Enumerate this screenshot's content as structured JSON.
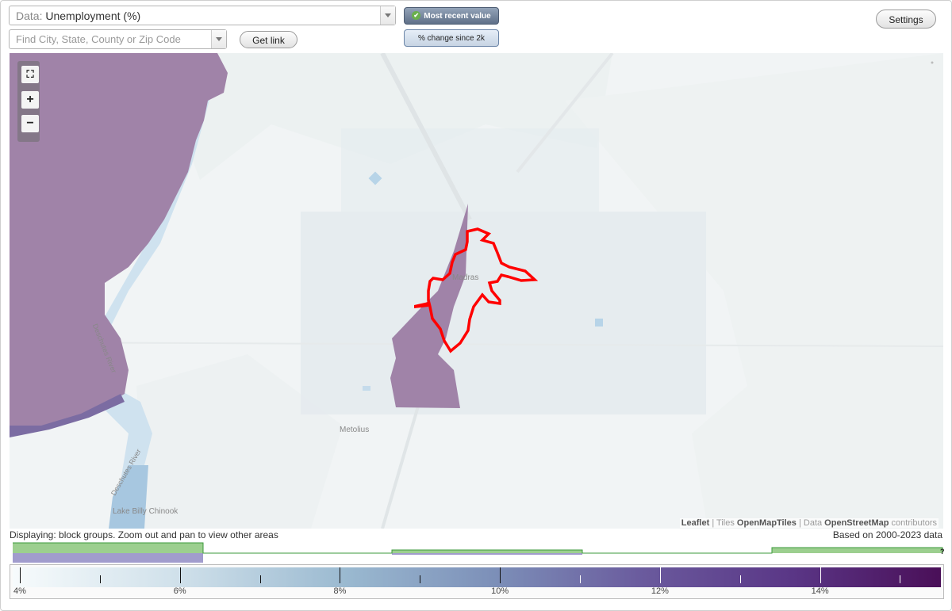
{
  "data_select": {
    "prefix": "Data: ",
    "value": "Unemployment (%)"
  },
  "search": {
    "placeholder": "Find City, State, County or Zip Code",
    "value": ""
  },
  "buttons": {
    "get_link": "Get link",
    "settings": "Settings"
  },
  "toggles": {
    "most_recent": "Most recent value",
    "pct_change": "% change since 2k"
  },
  "map": {
    "labels": {
      "madras": "Madras",
      "metolius": "Metolius",
      "lake": "Lake Billy Chinook",
      "river_1": "Deschutes River",
      "river_2": "Deschutes River"
    },
    "attribution": {
      "leaflet": "Leaflet",
      "sep1": " | Tiles ",
      "tiles": "OpenMapTiles",
      "sep2": " | Data ",
      "osm": "OpenStreetMap",
      "contributors": " contributors"
    },
    "highlight_color": "#ff0000",
    "region_color": "#a083a8"
  },
  "status": {
    "displaying": "Displaying: block groups. Zoom out and pan to view other areas",
    "based_on": "Based on 2000-2023 data"
  },
  "histogram": {
    "question_mark": "?"
  },
  "legend": {
    "ticks": [
      "4%",
      "6%",
      "8%",
      "10%",
      "12%",
      "14%"
    ],
    "min": 4,
    "max": 15.6
  }
}
